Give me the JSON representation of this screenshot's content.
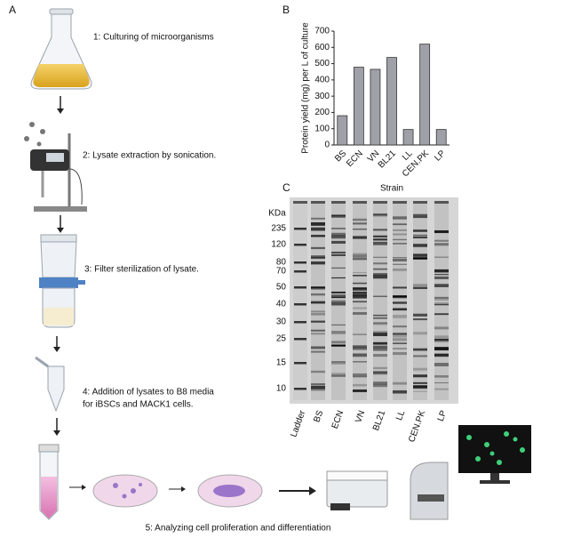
{
  "panels": {
    "a": "A",
    "b": "B",
    "c": "C"
  },
  "steps": {
    "s1": "1: Culturing of microorganisms",
    "s2": "2: Lysate extraction by sonication.",
    "s3": "3: Filter sterilization of lysate.",
    "s4": [
      "4: Addition of lysates to B8 media",
      "for iBSCs and MACK1 cells."
    ],
    "s5": "5: Analyzing cell proliferation and differentiation"
  },
  "chart_data": {
    "type": "bar",
    "ylabel": "Protein yield (mg) per L of culture",
    "xlabel": "Strain",
    "categories": [
      "BS",
      "ECN",
      "VN",
      "BL21",
      "LL",
      "CEN.PK",
      "LP"
    ],
    "values": [
      180,
      478,
      465,
      538,
      95,
      620,
      95
    ],
    "color": "#a0a0a8",
    "ylim": [
      0,
      700
    ],
    "yticks": [
      0,
      100,
      200,
      300,
      400,
      500,
      600,
      700
    ]
  },
  "gel": {
    "unit": "KDa",
    "markers": [
      "235",
      "120",
      "80",
      "70",
      "50",
      "40",
      "30",
      "25",
      "15",
      "10"
    ],
    "lanes": [
      "Ladder",
      "BS",
      "ECN",
      "VN",
      "BL21",
      "LL",
      "CEN.PK",
      "LP"
    ]
  }
}
